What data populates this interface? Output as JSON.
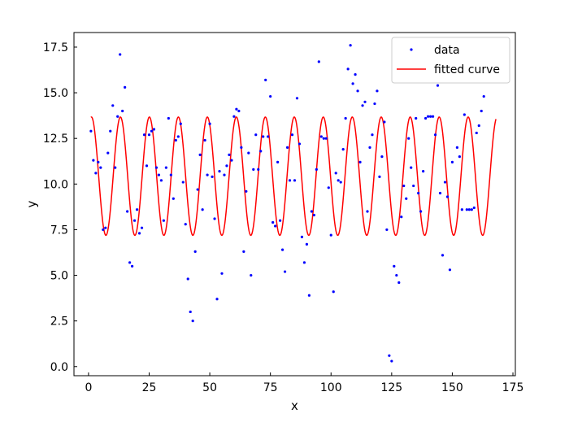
{
  "chart_data": {
    "type": "scatter",
    "title": "",
    "xlabel": "x",
    "ylabel": "y",
    "xlim": [
      -6,
      176
    ],
    "ylim": [
      -0.5,
      18.3
    ],
    "x_ticks": [
      0,
      25,
      50,
      75,
      100,
      125,
      150,
      175
    ],
    "y_ticks": [
      0.0,
      2.5,
      5.0,
      7.5,
      10.0,
      12.5,
      15.0,
      17.5
    ],
    "x_tick_labels": [
      "0",
      "25",
      "50",
      "75",
      "100",
      "125",
      "150",
      "175"
    ],
    "y_tick_labels": [
      "0.0",
      "2.5",
      "5.0",
      "7.5",
      "10.0",
      "12.5",
      "15.0",
      "17.5"
    ],
    "grid": false,
    "legend_position": "top-right",
    "series": [
      {
        "name": "data",
        "kind": "scatter",
        "color": "#0000ff",
        "points": [
          [
            1,
            12.9
          ],
          [
            2,
            11.3
          ],
          [
            3,
            10.6
          ],
          [
            4,
            11.2
          ],
          [
            5,
            10.9
          ],
          [
            6,
            7.5
          ],
          [
            7,
            7.6
          ],
          [
            8,
            11.7
          ],
          [
            9,
            12.9
          ],
          [
            10,
            14.3
          ],
          [
            11,
            10.9
          ],
          [
            12,
            13.7
          ],
          [
            13,
            17.1
          ],
          [
            14,
            14.0
          ],
          [
            15,
            15.3
          ],
          [
            16,
            8.5
          ],
          [
            17,
            5.7
          ],
          [
            18,
            5.5
          ],
          [
            19,
            8.0
          ],
          [
            20,
            8.6
          ],
          [
            21,
            7.3
          ],
          [
            22,
            7.6
          ],
          [
            23,
            12.7
          ],
          [
            24,
            11.0
          ],
          [
            25,
            12.7
          ],
          [
            26,
            12.9
          ],
          [
            27,
            13.0
          ],
          [
            28,
            10.9
          ],
          [
            29,
            10.5
          ],
          [
            30,
            10.2
          ],
          [
            31,
            8.0
          ],
          [
            32,
            10.9
          ],
          [
            33,
            13.6
          ],
          [
            34,
            10.5
          ],
          [
            35,
            9.2
          ],
          [
            36,
            12.4
          ],
          [
            37,
            12.6
          ],
          [
            38,
            13.3
          ],
          [
            39,
            10.1
          ],
          [
            40,
            7.8
          ],
          [
            41,
            4.8
          ],
          [
            42,
            3.0
          ],
          [
            43,
            2.5
          ],
          [
            44,
            6.3
          ],
          [
            45,
            9.7
          ],
          [
            46,
            11.6
          ],
          [
            47,
            8.6
          ],
          [
            48,
            12.4
          ],
          [
            49,
            10.5
          ],
          [
            50,
            13.3
          ],
          [
            51,
            10.4
          ],
          [
            52,
            8.1
          ],
          [
            53,
            3.7
          ],
          [
            54,
            10.7
          ],
          [
            55,
            5.1
          ],
          [
            56,
            10.5
          ],
          [
            57,
            11.0
          ],
          [
            58,
            11.6
          ],
          [
            59,
            11.3
          ],
          [
            60,
            13.7
          ],
          [
            61,
            14.1
          ],
          [
            62,
            14.0
          ],
          [
            63,
            12.0
          ],
          [
            64,
            6.3
          ],
          [
            65,
            9.6
          ],
          [
            66,
            11.7
          ],
          [
            67,
            5.0
          ],
          [
            68,
            10.8
          ],
          [
            69,
            12.7
          ],
          [
            70,
            10.8
          ],
          [
            71,
            11.8
          ],
          [
            72,
            12.6
          ],
          [
            73,
            15.7
          ],
          [
            74,
            12.6
          ],
          [
            75,
            14.8
          ],
          [
            76,
            7.9
          ],
          [
            77,
            7.7
          ],
          [
            78,
            11.2
          ],
          [
            79,
            8.0
          ],
          [
            80,
            6.4
          ],
          [
            81,
            5.2
          ],
          [
            82,
            12.0
          ],
          [
            83,
            10.2
          ],
          [
            84,
            12.7
          ],
          [
            85,
            10.2
          ],
          [
            86,
            14.7
          ],
          [
            87,
            12.2
          ],
          [
            88,
            7.1
          ],
          [
            89,
            5.7
          ],
          [
            90,
            6.7
          ],
          [
            91,
            3.9
          ],
          [
            92,
            8.5
          ],
          [
            93,
            8.3
          ],
          [
            94,
            10.8
          ],
          [
            95,
            16.7
          ],
          [
            96,
            12.6
          ],
          [
            97,
            12.5
          ],
          [
            98,
            12.5
          ],
          [
            99,
            9.8
          ],
          [
            100,
            7.2
          ],
          [
            101,
            4.1
          ],
          [
            102,
            10.6
          ],
          [
            103,
            10.2
          ],
          [
            104,
            10.1
          ],
          [
            105,
            11.9
          ],
          [
            106,
            13.6
          ],
          [
            107,
            16.3
          ],
          [
            108,
            17.6
          ],
          [
            109,
            15.5
          ],
          [
            110,
            16.0
          ],
          [
            111,
            15.1
          ],
          [
            112,
            11.2
          ],
          [
            113,
            14.3
          ],
          [
            114,
            14.5
          ],
          [
            115,
            8.5
          ],
          [
            116,
            12.0
          ],
          [
            117,
            12.7
          ],
          [
            118,
            14.4
          ],
          [
            119,
            15.1
          ],
          [
            120,
            10.4
          ],
          [
            121,
            11.5
          ],
          [
            122,
            13.4
          ],
          [
            123,
            7.5
          ],
          [
            124,
            0.6
          ],
          [
            125,
            0.3
          ],
          [
            126,
            5.5
          ],
          [
            127,
            5.0
          ],
          [
            128,
            4.6
          ],
          [
            129,
            8.2
          ],
          [
            130,
            9.9
          ],
          [
            131,
            9.2
          ],
          [
            132,
            12.5
          ],
          [
            133,
            10.9
          ],
          [
            134,
            9.9
          ],
          [
            135,
            13.6
          ],
          [
            136,
            9.5
          ],
          [
            137,
            8.5
          ],
          [
            138,
            10.7
          ],
          [
            139,
            13.6
          ],
          [
            140,
            13.7
          ],
          [
            141,
            13.7
          ],
          [
            142,
            13.7
          ],
          [
            143,
            12.7
          ],
          [
            144,
            15.4
          ],
          [
            145,
            9.5
          ],
          [
            146,
            6.1
          ],
          [
            147,
            10.1
          ],
          [
            148,
            9.3
          ],
          [
            149,
            5.3
          ],
          [
            150,
            11.2
          ],
          [
            151,
            15.6
          ],
          [
            152,
            12.0
          ],
          [
            153,
            11.5
          ],
          [
            154,
            8.6
          ],
          [
            155,
            13.8
          ],
          [
            156,
            8.6
          ],
          [
            157,
            8.6
          ],
          [
            158,
            8.6
          ],
          [
            159,
            8.7
          ],
          [
            160,
            12.8
          ],
          [
            161,
            13.2
          ],
          [
            162,
            14.0
          ],
          [
            163,
            14.8
          ]
        ]
      },
      {
        "name": "fitted curve",
        "kind": "line",
        "color": "#ff0000",
        "function": "y = offset + amplitude * cos(2*pi*(x - phase_x)/period)",
        "offset": 10.43,
        "amplitude": 3.24,
        "period": 11.95,
        "phase_x": 1.2,
        "x_range": [
          1,
          168
        ]
      }
    ]
  }
}
